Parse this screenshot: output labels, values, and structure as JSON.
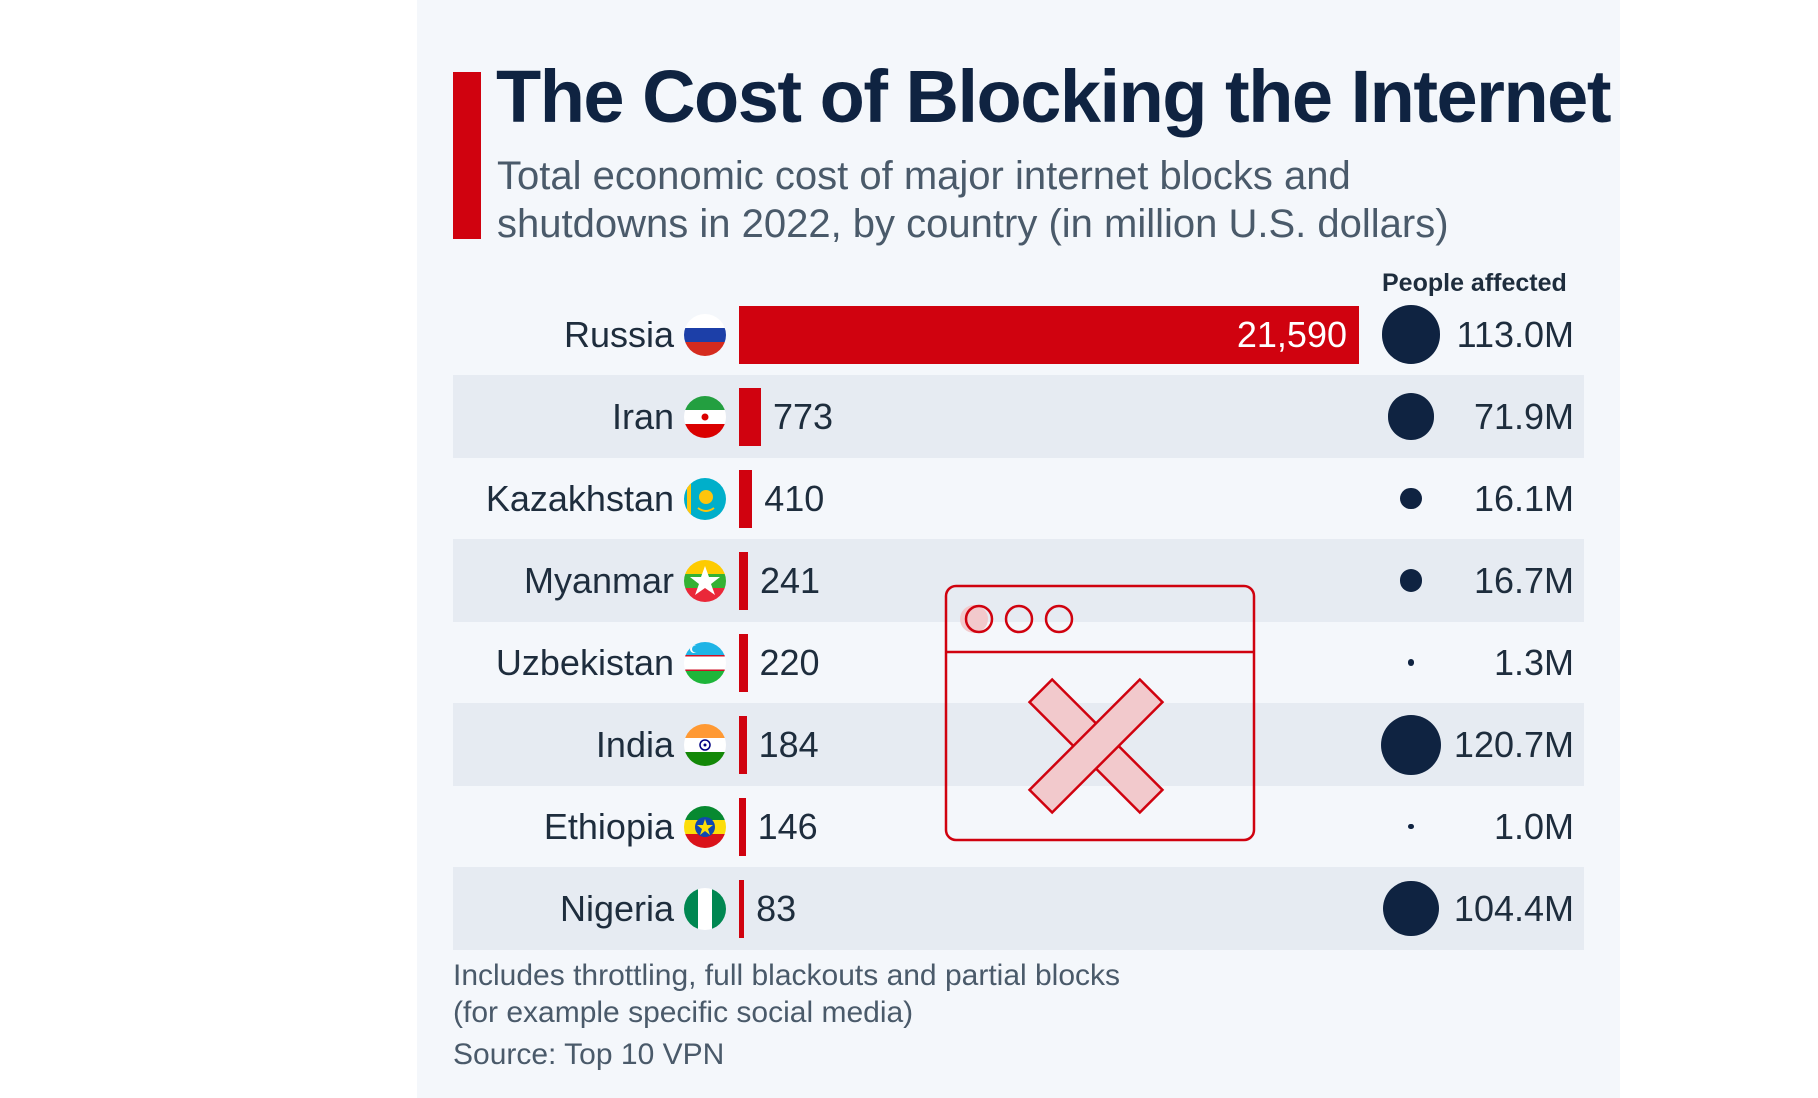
{
  "chart_data": {
    "type": "bar",
    "title": "The Cost of Blocking the Internet",
    "subtitle_line1": "Total economic cost of major internet blocks and",
    "subtitle_line2": "shutdowns in 2022, by country (in million U.S. dollars)",
    "people_header": "People affected",
    "categories": [
      "Russia",
      "Iran",
      "Kazakhstan",
      "Myanmar",
      "Uzbekistan",
      "India",
      "Ethiopia",
      "Nigeria"
    ],
    "values": [
      21590,
      773,
      410,
      241,
      220,
      184,
      146,
      83
    ],
    "value_labels": [
      "21,590",
      "773",
      "410",
      "241",
      "220",
      "184",
      "146",
      "83"
    ],
    "people_affected_millions": [
      113.0,
      71.9,
      16.1,
      16.7,
      1.3,
      120.7,
      1.0,
      104.4
    ],
    "people_labels": [
      "113.0M",
      "71.9M",
      "16.1M",
      "16.7M",
      "1.3M",
      "120.7M",
      "1.0M",
      "104.4M"
    ],
    "note_line1": "Includes throttling, full blackouts and partial blocks",
    "note_line2": "(for example specific social media)",
    "source": "Source: Top 10 VPN",
    "bar_color": "#d0020f",
    "bubble_color": "#0f2341",
    "flag_icons": [
      "russia-flag-icon",
      "iran-flag-icon",
      "kazakhstan-flag-icon",
      "myanmar-flag-icon",
      "uzbekistan-flag-icon",
      "india-flag-icon",
      "ethiopia-flag-icon",
      "nigeria-flag-icon"
    ]
  }
}
